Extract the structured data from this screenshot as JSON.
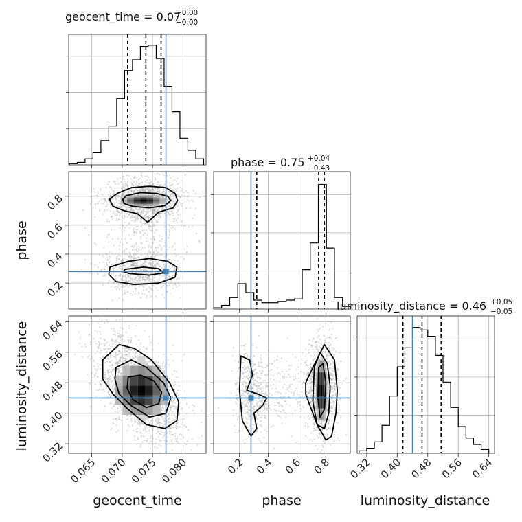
{
  "colors": {
    "truth": "#4682b4",
    "contour": "#000000",
    "samples": "#9a9a9a",
    "grid": "#b0b0b0"
  },
  "chart_data": {
    "type": "corner",
    "parameters": [
      "geocent_time",
      "phase",
      "luminosity_distance"
    ],
    "truths": {
      "geocent_time": 0.0772,
      "phase": 0.28,
      "luminosity_distance": 0.44
    },
    "titles": [
      {
        "param": "geocent_time",
        "text": "geocent_time = 0.07",
        "sup": "+0.00",
        "sub": "−0.00"
      },
      {
        "param": "phase",
        "text": "phase = 0.75",
        "sup": "+0.04",
        "sub": "−0.43"
      },
      {
        "param": "luminosity_distance",
        "text": "luminosity_distance = 0.46",
        "sup": "+0.05",
        "sub": "−0.05"
      }
    ],
    "axis_labels": {
      "x": [
        "geocent_time",
        "phase",
        "luminosity_distance"
      ],
      "y": [
        "phase",
        "luminosity_distance"
      ]
    },
    "axes": {
      "geocent_time": {
        "range": [
          0.0612,
          0.0838
        ],
        "ticks": [
          "0.065",
          "0.070",
          "0.075",
          "0.080"
        ]
      },
      "phase": {
        "range": [
          0.02,
          0.97
        ],
        "ticks": [
          "0.2",
          "0.4",
          "0.6",
          "0.8"
        ]
      },
      "luminosity_distance": {
        "range": [
          0.295,
          0.655
        ],
        "ticks": [
          "0.32",
          "0.40",
          "0.48",
          "0.56",
          "0.64"
        ]
      }
    },
    "histograms": {
      "geocent_time": {
        "edges": [
          0.0613,
          0.0626,
          0.0639,
          0.0652,
          0.0665,
          0.0678,
          0.0691,
          0.0704,
          0.0717,
          0.073,
          0.0743,
          0.0756,
          0.0769,
          0.0782,
          0.0795,
          0.0808,
          0.0821,
          0.0834
        ],
        "counts": [
          0.01,
          0.02,
          0.05,
          0.1,
          0.2,
          0.32,
          0.55,
          0.78,
          0.87,
          0.98,
          0.99,
          0.88,
          0.65,
          0.44,
          0.22,
          0.12,
          0.05
        ]
      },
      "phase": {
        "edges": [
          0.02,
          0.076,
          0.132,
          0.188,
          0.244,
          0.3,
          0.356,
          0.412,
          0.468,
          0.524,
          0.58,
          0.636,
          0.692,
          0.748,
          0.804,
          0.86,
          0.916,
          0.972
        ],
        "counts": [
          0.01,
          0.03,
          0.09,
          0.2,
          0.13,
          0.07,
          0.05,
          0.05,
          0.06,
          0.07,
          0.08,
          0.31,
          0.52,
          0.98,
          0.48,
          0.09,
          0.02
        ]
      },
      "luminosity_distance": {
        "edges": [
          0.3,
          0.32,
          0.34,
          0.36,
          0.38,
          0.4,
          0.42,
          0.44,
          0.46,
          0.48,
          0.5,
          0.52,
          0.54,
          0.56,
          0.58,
          0.6,
          0.62,
          0.64
        ],
        "counts": [
          0.02,
          0.04,
          0.09,
          0.22,
          0.45,
          0.68,
          0.83,
          0.99,
          0.97,
          0.92,
          0.77,
          0.56,
          0.36,
          0.21,
          0.12,
          0.07,
          0.03
        ]
      }
    },
    "quantiles": {
      "geocent_time": [
        0.0709,
        0.0739,
        0.0764
      ],
      "phase": [
        0.32,
        0.75,
        0.79
      ],
      "luminosity_distance": [
        0.415,
        0.465,
        0.515
      ]
    },
    "contours": {
      "geocent_time_vs_phase": [
        {
          "x": [
            0.0692,
            0.0715,
            0.0745,
            0.0772,
            0.0787,
            0.0791,
            0.0784,
            0.076,
            0.0742,
            0.0725,
            0.0703,
            0.0685,
            0.0679,
            0.0692
          ],
          "y": [
            0.82,
            0.86,
            0.87,
            0.86,
            0.82,
            0.77,
            0.72,
            0.69,
            0.62,
            0.68,
            0.7,
            0.73,
            0.78,
            0.82
          ]
        },
        {
          "x": [
            0.0707,
            0.073,
            0.0757,
            0.0775,
            0.078,
            0.077,
            0.0745,
            0.0718,
            0.0703,
            0.0701,
            0.0707
          ],
          "y": [
            0.805,
            0.825,
            0.82,
            0.8,
            0.77,
            0.735,
            0.72,
            0.73,
            0.75,
            0.78,
            0.805
          ]
        },
        {
          "x": [
            0.068,
            0.071,
            0.0745,
            0.0775,
            0.079,
            0.0787,
            0.076,
            0.072,
            0.069,
            0.0678,
            0.068
          ],
          "y": [
            0.31,
            0.35,
            0.37,
            0.35,
            0.31,
            0.24,
            0.2,
            0.19,
            0.21,
            0.26,
            0.31
          ]
        },
        {
          "x": [
            0.0705,
            0.0735,
            0.076,
            0.0768,
            0.0745,
            0.0712,
            0.0702,
            0.0705
          ],
          "y": [
            0.295,
            0.31,
            0.3,
            0.27,
            0.255,
            0.265,
            0.28,
            0.295
          ]
        }
      ],
      "geocent_time_vs_luminosity_distance": [
        {
          "x": [
            0.0668,
            0.0695,
            0.072,
            0.0748,
            0.0778,
            0.0793,
            0.079,
            0.077,
            0.074,
            0.071,
            0.0685,
            0.0668,
            0.0668
          ],
          "y": [
            0.54,
            0.58,
            0.57,
            0.54,
            0.48,
            0.43,
            0.38,
            0.36,
            0.37,
            0.41,
            0.45,
            0.49,
            0.54
          ]
        },
        {
          "x": [
            0.069,
            0.0715,
            0.074,
            0.0768,
            0.078,
            0.0772,
            0.0745,
            0.0715,
            0.0695,
            0.0688,
            0.069
          ],
          "y": [
            0.52,
            0.54,
            0.52,
            0.48,
            0.44,
            0.4,
            0.39,
            0.42,
            0.45,
            0.49,
            0.52
          ]
        },
        {
          "x": [
            0.071,
            0.073,
            0.0752,
            0.0765,
            0.076,
            0.074,
            0.0718,
            0.0708,
            0.071
          ],
          "y": [
            0.495,
            0.5,
            0.485,
            0.455,
            0.425,
            0.415,
            0.435,
            0.465,
            0.495
          ]
        }
      ],
      "phase_vs_luminosity_distance": [
        {
          "x": [
            0.21,
            0.27,
            0.29,
            0.25,
            0.33,
            0.39,
            0.36,
            0.3,
            0.32,
            0.28,
            0.22,
            0.2,
            0.21
          ],
          "y": [
            0.55,
            0.54,
            0.5,
            0.46,
            0.45,
            0.44,
            0.42,
            0.4,
            0.36,
            0.34,
            0.38,
            0.46,
            0.55
          ]
        },
        {
          "x": [
            0.66,
            0.71,
            0.79,
            0.86,
            0.88,
            0.87,
            0.84,
            0.8,
            0.74,
            0.69,
            0.66,
            0.66
          ],
          "y": [
            0.48,
            0.52,
            0.58,
            0.54,
            0.46,
            0.4,
            0.34,
            0.33,
            0.37,
            0.42,
            0.45,
            0.48
          ]
        },
        {
          "x": [
            0.72,
            0.76,
            0.81,
            0.83,
            0.82,
            0.79,
            0.74,
            0.71,
            0.72
          ],
          "y": [
            0.52,
            0.56,
            0.53,
            0.47,
            0.4,
            0.36,
            0.37,
            0.43,
            0.52
          ]
        },
        {
          "x": [
            0.75,
            0.78,
            0.8,
            0.79,
            0.76,
            0.745,
            0.75
          ],
          "y": [
            0.52,
            0.53,
            0.48,
            0.41,
            0.39,
            0.44,
            0.52
          ]
        }
      ]
    },
    "grid": true
  }
}
